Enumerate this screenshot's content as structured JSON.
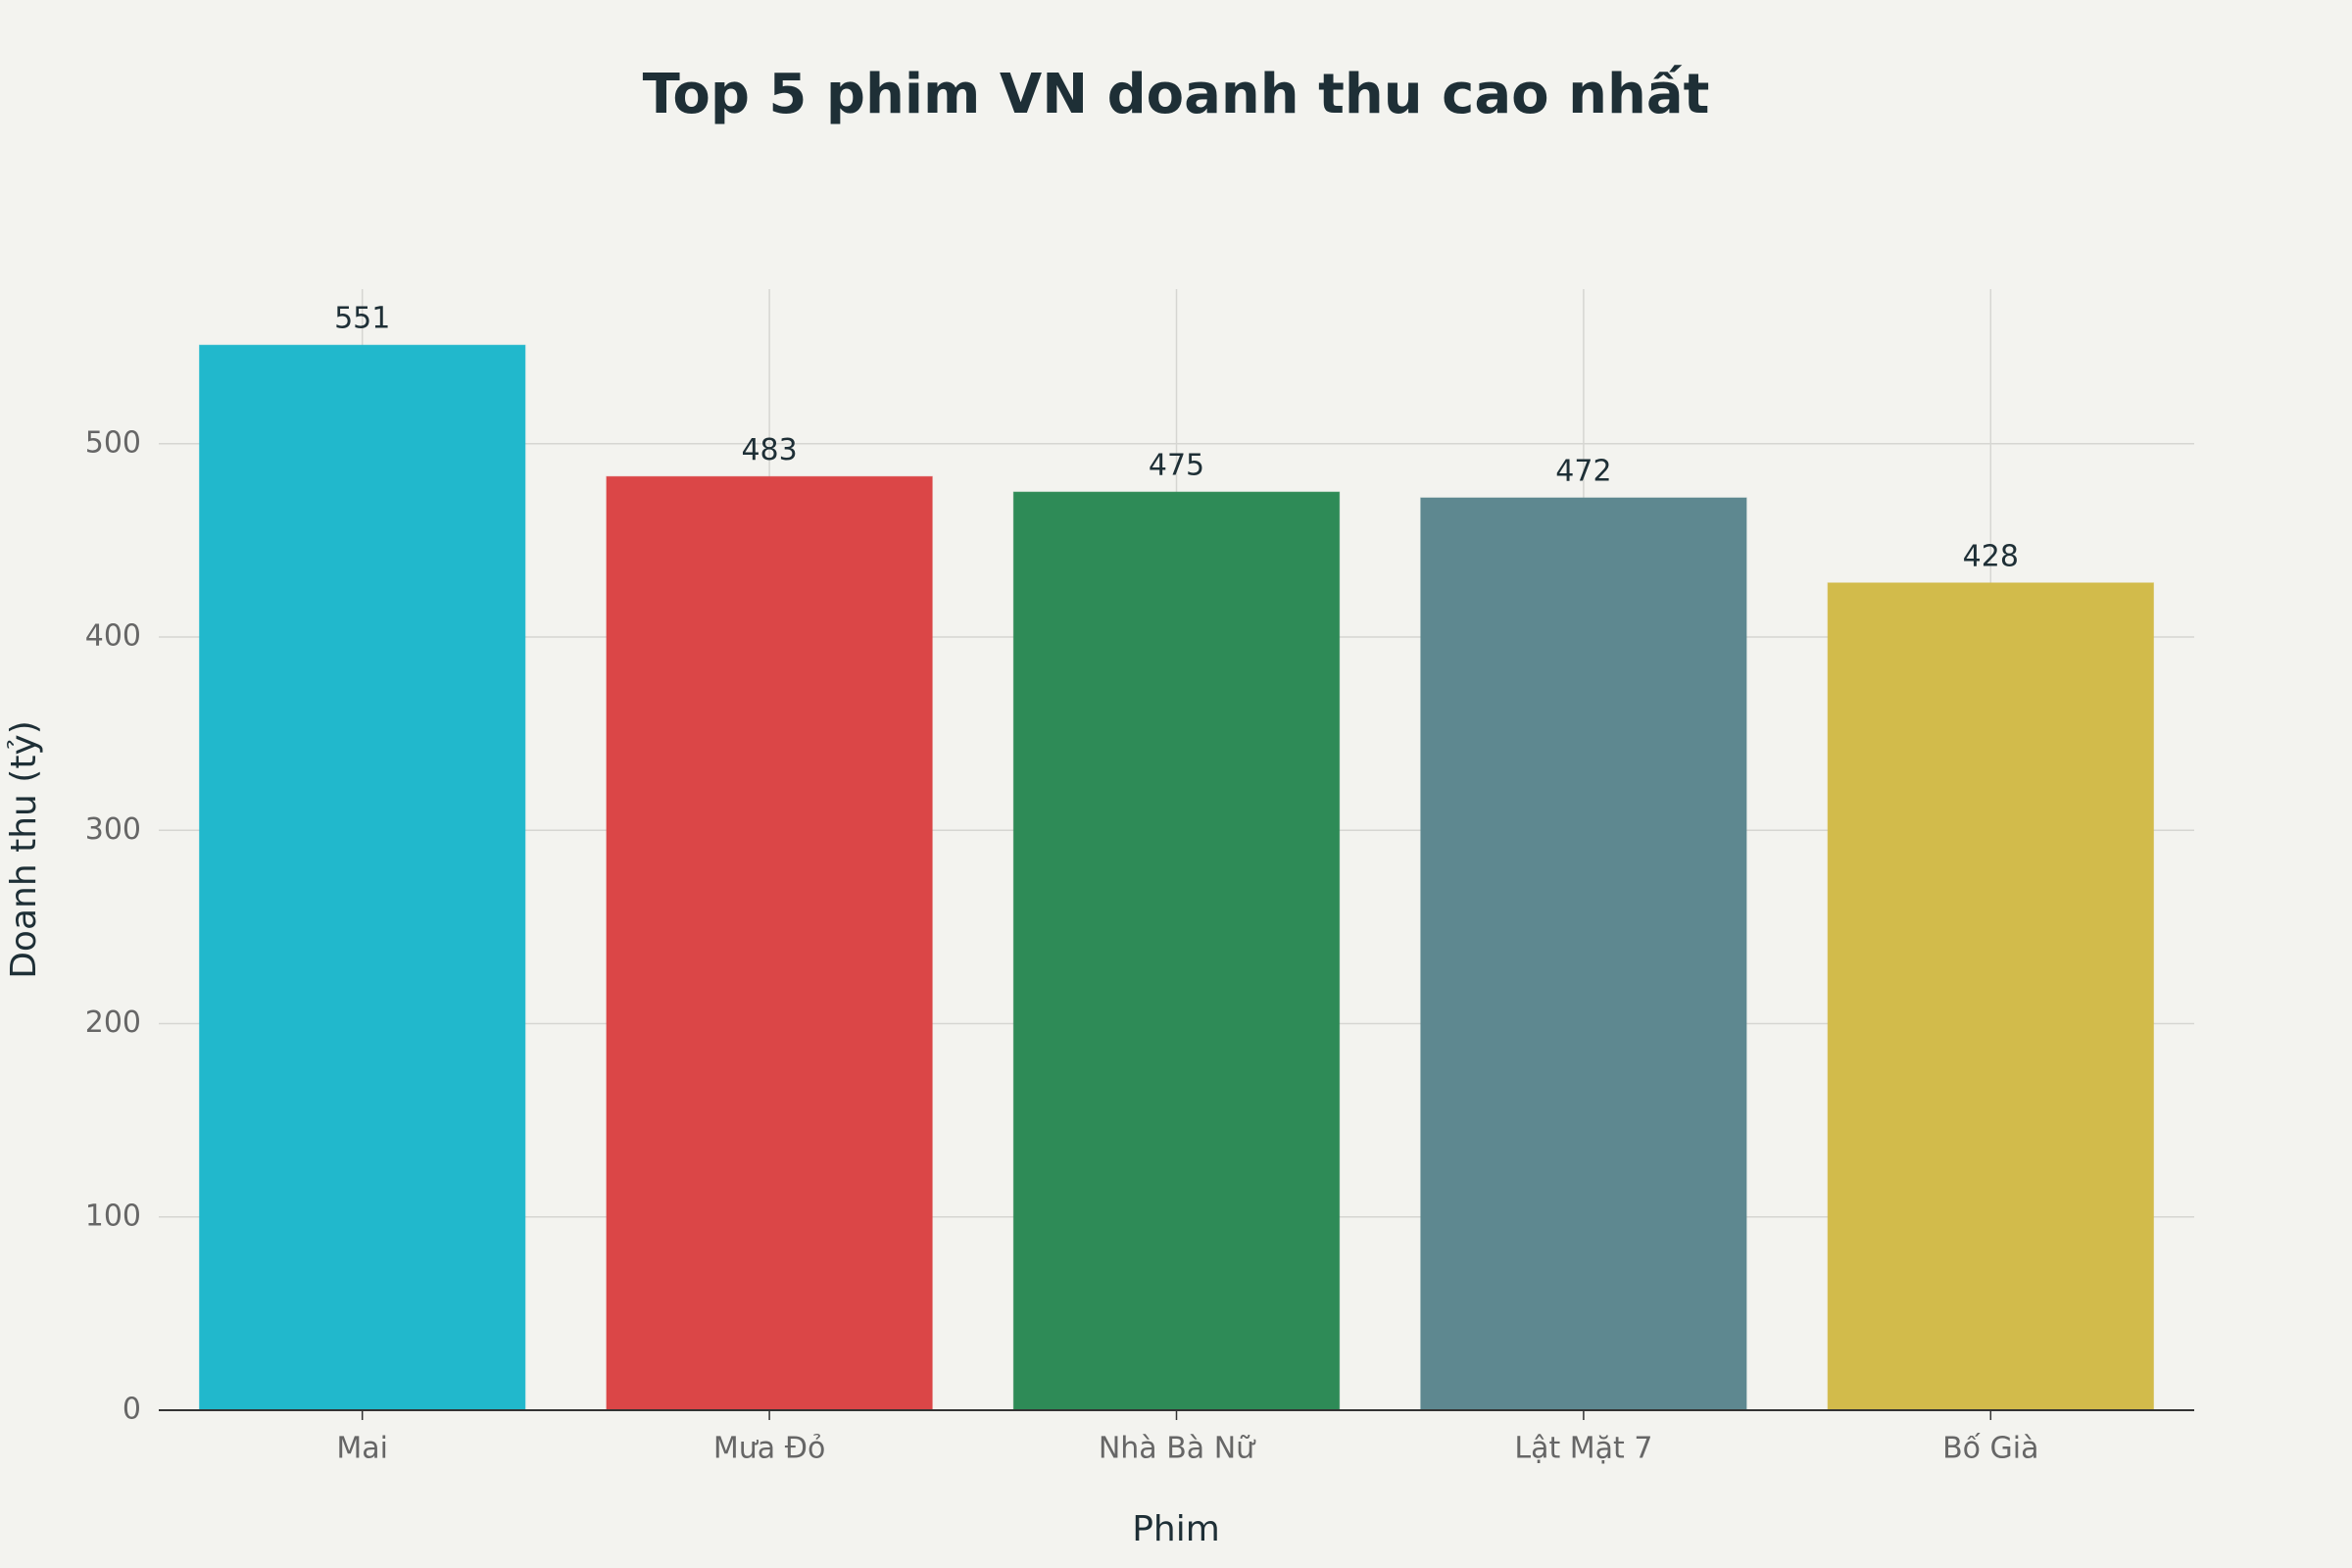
{
  "chart_data": {
    "type": "bar",
    "title": "Top 5 phim VN doanh thu cao nhất",
    "x_label": "Phim",
    "y_label": "Doanh thu (tỷ)",
    "categories": [
      "Mai",
      "Mưa Đỏ",
      "Nhà Bà Nữ",
      "Lật Mặt 7",
      "Bố Già"
    ],
    "values": [
      551,
      483,
      475,
      472,
      428
    ],
    "colors": [
      "#21b8cc",
      "#db4647",
      "#2e8b57",
      "#5e8890",
      "#d2bb4b"
    ],
    "ylim": [
      0,
      580
    ],
    "yticks": [
      0,
      100,
      200,
      300,
      400,
      500
    ],
    "grid": true
  }
}
